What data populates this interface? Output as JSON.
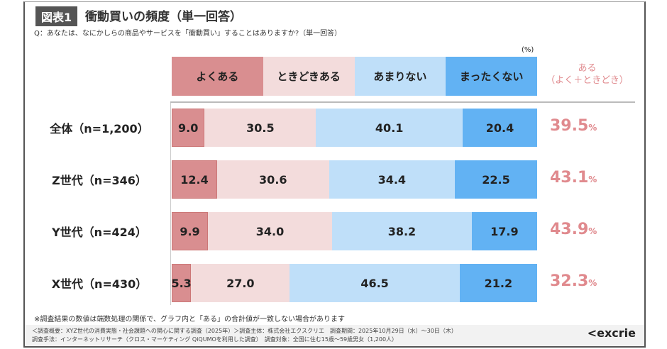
{
  "header": {
    "badge": "図表1",
    "title": "衝動買いの頻度（単一回答）",
    "question": "Q：あなたは、なにかしらの商品やサービスを「衝動買い」することはありますか?（単一回答）"
  },
  "chart_data": {
    "type": "bar",
    "stacked": true,
    "orientation": "horizontal",
    "unit": "(%)",
    "xlim": [
      0,
      100
    ],
    "categories": [
      "全体（n=1,200）",
      "Z世代（n=346）",
      "Y世代（n=424）",
      "X世代（n=430）"
    ],
    "series": [
      {
        "name": "よくある",
        "color": "#d98e90",
        "values": [
          9.0,
          12.4,
          9.9,
          5.3
        ]
      },
      {
        "name": "ときどきある",
        "color": "#f3dcdc",
        "values": [
          30.5,
          30.6,
          34.0,
          27.0
        ]
      },
      {
        "name": "あまりない",
        "color": "#bfdff9",
        "values": [
          40.1,
          34.4,
          38.2,
          46.5
        ]
      },
      {
        "name": "まったくない",
        "color": "#62b2f3",
        "values": [
          20.4,
          22.5,
          17.9,
          21.2
        ]
      }
    ],
    "summary": {
      "label_line1": "ある",
      "label_line2": "（よく＋ときどき）",
      "values": [
        "39.5",
        "43.1",
        "43.9",
        "32.3"
      ],
      "suffix": "%",
      "color": "#e08a8e"
    }
  },
  "note": "※調査結果の数値は端数処理の関係で、グラフ内と「ある」の合計値が一致しない場合があります",
  "footer": {
    "line1": "＜調査概要：XYZ世代の消費実態・社会課題への関心に関する調査（2025年）＞調査主体：株式会社エクスクリエ　調査期間：2025年10月29日（水）～30日（木）",
    "line2": "調査手法：インターネットリサーチ（クロス・マーケティング QiQUMOを利用した調査）　調査対象：全国に住む15歳～59歳男女（1,200人）",
    "logo": "excrie"
  }
}
